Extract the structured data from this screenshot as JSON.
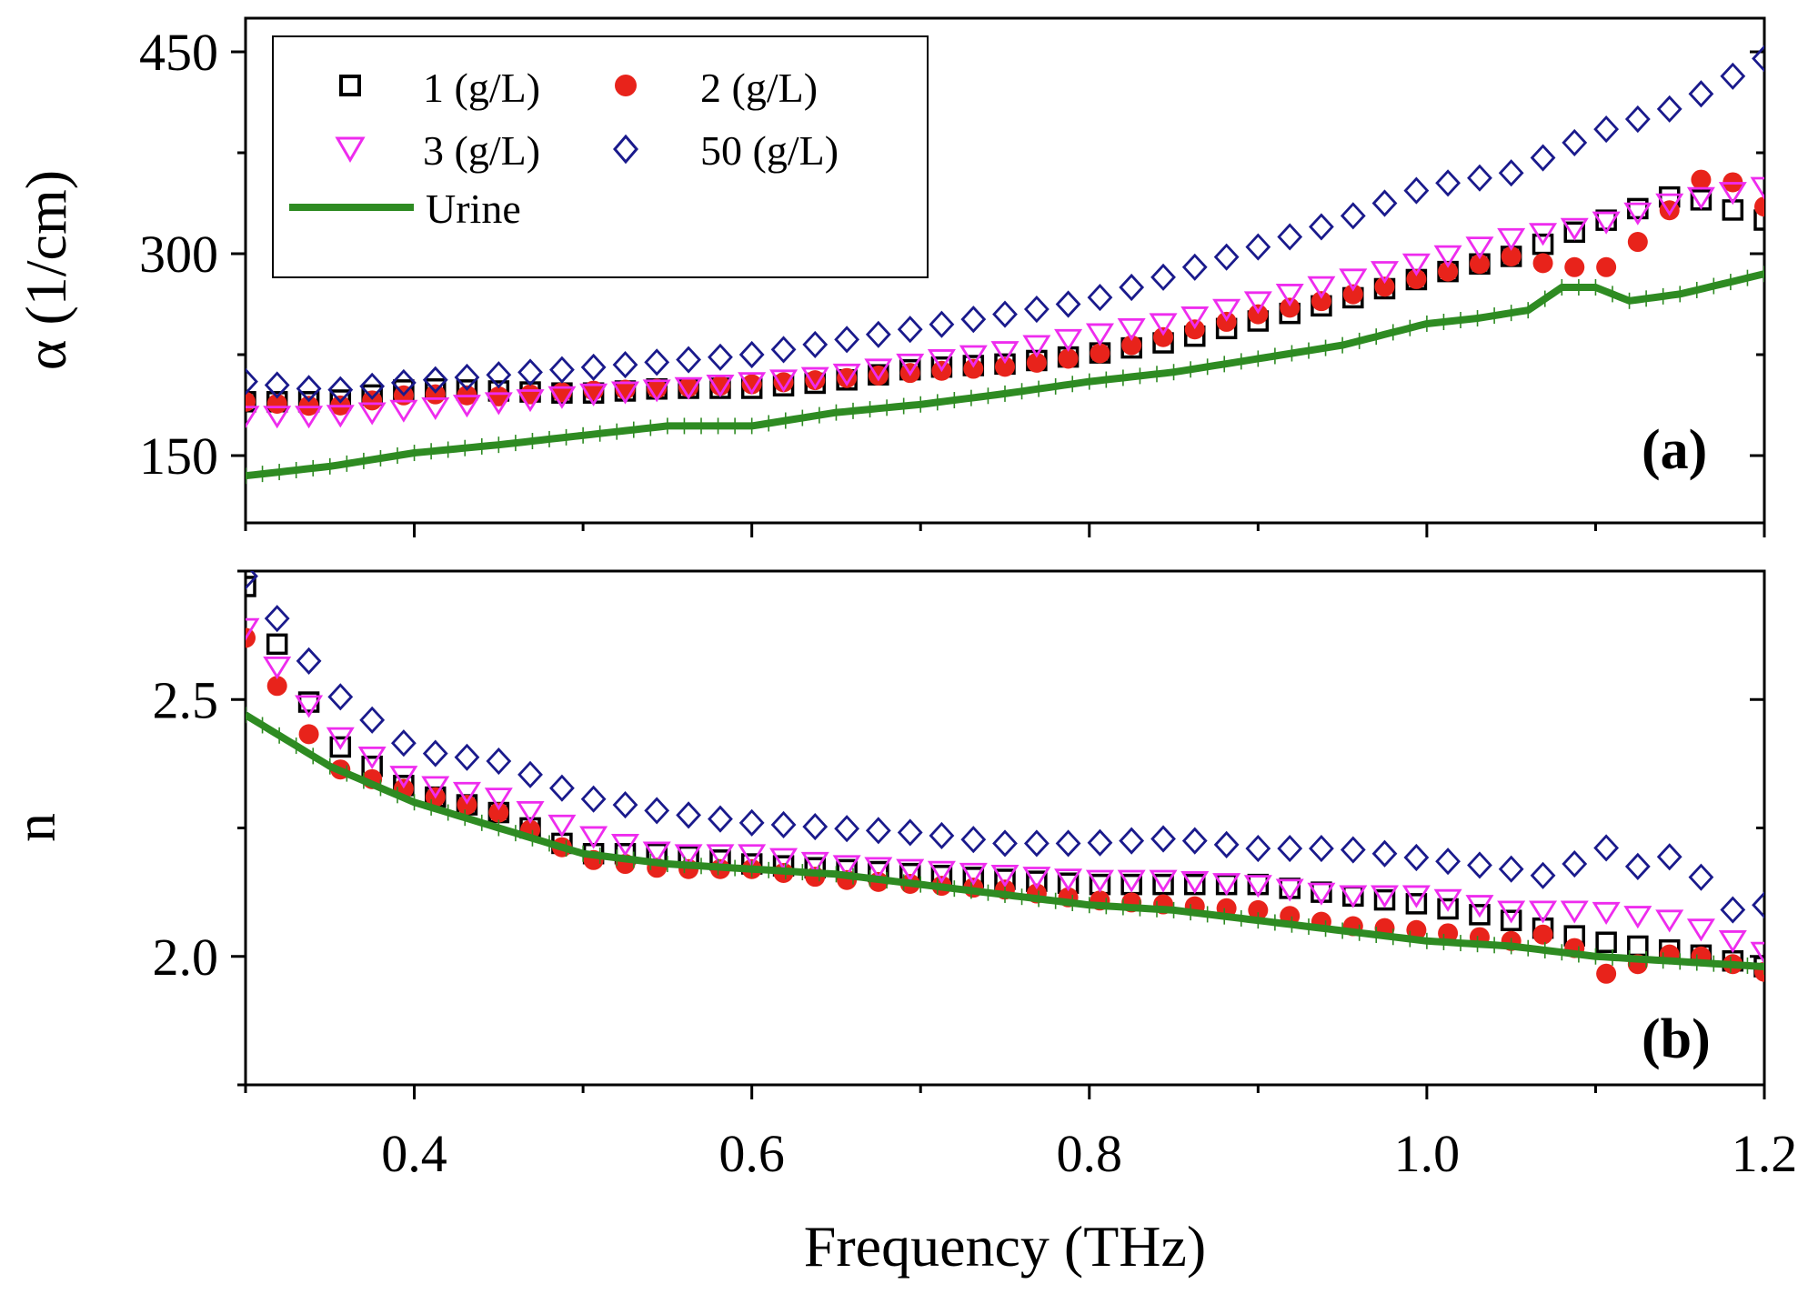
{
  "chart_data": {
    "type": "scatter",
    "xlabel": "Frequency (THz)",
    "xlim": [
      0.3,
      1.2
    ],
    "xticks": [
      0.4,
      0.6,
      0.8,
      1.0,
      1.2
    ],
    "xtick_labels": [
      "0.4",
      "0.6",
      "0.8",
      "1.0",
      "1.2"
    ],
    "colors": {
      "c1": "#000000",
      "c2": "#e8231b",
      "c3": "#ee2cee",
      "c50": "#1a1a8c",
      "urine": "#2e8b22"
    },
    "legend": [
      {
        "key": "c1",
        "label": "1 (g/L)",
        "marker": "square-open"
      },
      {
        "key": "c2",
        "label": "2 (g/L)",
        "marker": "circle-filled"
      },
      {
        "key": "c3",
        "label": "3 (g/L)",
        "marker": "triangle-down-open"
      },
      {
        "key": "c50",
        "label": "50 (g/L)",
        "marker": "diamond-open"
      },
      {
        "key": "urine",
        "label": "Urine",
        "marker": "line"
      }
    ],
    "panels": [
      {
        "id": "a",
        "label": "(a)",
        "ylabel": "α (1/cm)",
        "ylim": [
          100,
          475
        ],
        "yticks": [
          150,
          300,
          450
        ],
        "ytick_labels": [
          "150",
          "300",
          "450"
        ],
        "series": [
          {
            "key": "c1",
            "name": "1 (g/L)",
            "x": [
              0.3,
              0.35,
              0.4,
              0.45,
              0.5,
              0.55,
              0.6,
              0.65,
              0.7,
              0.75,
              0.8,
              0.85,
              0.9,
              0.95,
              1.0,
              1.05,
              1.1,
              1.15,
              1.2
            ],
            "y": [
              190,
              190,
              200,
              198,
              196,
              200,
              200,
              205,
              215,
              218,
              225,
              235,
              250,
              265,
              283,
              298,
              322,
              345,
              325
            ]
          },
          {
            "key": "c2",
            "name": "2 (g/L)",
            "x": [
              0.3,
              0.35,
              0.4,
              0.45,
              0.5,
              0.55,
              0.6,
              0.65,
              0.7,
              0.75,
              0.8,
              0.85,
              0.9,
              0.95,
              1.0,
              1.05,
              1.08,
              1.11,
              1.15,
              1.17,
              1.2
            ],
            "y": [
              190,
              186,
              196,
              194,
              198,
              200,
              203,
              207,
              212,
              216,
              224,
              240,
              255,
              268,
              283,
              298,
              290,
              290,
              340,
              364,
              335
            ]
          },
          {
            "key": "c3",
            "name": "3 (g/L)",
            "x": [
              0.3,
              0.35,
              0.4,
              0.45,
              0.5,
              0.55,
              0.6,
              0.65,
              0.7,
              0.75,
              0.8,
              0.85,
              0.9,
              0.95,
              1.0,
              1.05,
              1.1,
              1.15,
              1.2
            ],
            "y": [
              180,
              180,
              185,
              190,
              196,
              200,
              205,
              210,
              220,
              228,
              240,
              250,
              265,
              280,
              295,
              312,
              322,
              340,
              350
            ]
          },
          {
            "key": "c50",
            "name": "50 (g/L)",
            "x": [
              0.3,
              0.35,
              0.4,
              0.45,
              0.5,
              0.55,
              0.6,
              0.65,
              0.7,
              0.75,
              0.8,
              0.85,
              0.9,
              0.95,
              1.0,
              1.05,
              1.1,
              1.15,
              1.2
            ],
            "y": [
              205,
              198,
              205,
              210,
              215,
              220,
              225,
              235,
              245,
              255,
              265,
              285,
              305,
              325,
              350,
              360,
              390,
              410,
              445
            ]
          },
          {
            "key": "urine",
            "name": "Urine",
            "x": [
              0.3,
              0.35,
              0.4,
              0.45,
              0.5,
              0.55,
              0.6,
              0.65,
              0.7,
              0.75,
              0.8,
              0.85,
              0.9,
              0.95,
              1.0,
              1.03,
              1.06,
              1.08,
              1.1,
              1.12,
              1.15,
              1.2
            ],
            "y": [
              135,
              142,
              152,
              158,
              165,
              172,
              172,
              182,
              188,
              196,
              205,
              212,
              222,
              232,
              248,
              252,
              258,
              275,
              275,
              265,
              270,
              285
            ]
          }
        ]
      },
      {
        "id": "b",
        "label": "(b)",
        "ylabel": "n",
        "ylim": [
          1.75,
          2.75
        ],
        "yticks": [
          2.0,
          2.5
        ],
        "ytick_labels": [
          "2.0",
          "2.5"
        ],
        "series": [
          {
            "key": "c1",
            "name": "1 (g/L)",
            "x": [
              0.3,
              0.35,
              0.4,
              0.45,
              0.5,
              0.55,
              0.6,
              0.65,
              0.7,
              0.75,
              0.8,
              0.85,
              0.9,
              0.95,
              1.0,
              1.05,
              1.1,
              1.15,
              1.2
            ],
            "y": [
              2.72,
              2.42,
              2.32,
              2.28,
              2.2,
              2.2,
              2.18,
              2.17,
              2.16,
              2.15,
              2.14,
              2.14,
              2.14,
              2.12,
              2.1,
              2.07,
              2.03,
              2.01,
              1.98
            ]
          },
          {
            "key": "c2",
            "name": "2 (g/L)",
            "x": [
              0.3,
              0.35,
              0.4,
              0.45,
              0.5,
              0.55,
              0.6,
              0.65,
              0.7,
              0.75,
              0.8,
              0.85,
              0.9,
              0.95,
              1.0,
              1.05,
              1.08,
              1.1,
              1.15,
              1.2
            ],
            "y": [
              2.62,
              2.37,
              2.32,
              2.28,
              2.19,
              2.17,
              2.17,
              2.15,
              2.14,
              2.13,
              2.11,
              2.1,
              2.09,
              2.06,
              2.05,
              2.03,
              2.05,
              1.96,
              2.01,
              1.97
            ]
          },
          {
            "key": "c3",
            "name": "3 (g/L)",
            "x": [
              0.3,
              0.35,
              0.4,
              0.45,
              0.5,
              0.55,
              0.6,
              0.65,
              0.7,
              0.75,
              0.8,
              0.85,
              0.9,
              0.95,
              1.0,
              1.05,
              1.1,
              1.15,
              1.2
            ],
            "y": [
              2.64,
              2.44,
              2.34,
              2.31,
              2.24,
              2.2,
              2.2,
              2.18,
              2.17,
              2.16,
              2.15,
              2.15,
              2.14,
              2.12,
              2.12,
              2.09,
              2.09,
              2.07,
              2.01
            ]
          },
          {
            "key": "c50",
            "name": "50 (g/L)",
            "x": [
              0.3,
              0.35,
              0.4,
              0.45,
              0.5,
              0.55,
              0.6,
              0.65,
              0.7,
              0.75,
              0.8,
              0.85,
              0.9,
              0.95,
              1.0,
              1.05,
              1.08,
              1.1,
              1.12,
              1.15,
              1.18,
              1.2
            ],
            "y": [
              2.74,
              2.52,
              2.4,
              2.38,
              2.31,
              2.28,
              2.26,
              2.25,
              2.24,
              2.22,
              2.22,
              2.23,
              2.21,
              2.21,
              2.19,
              2.17,
              2.15,
              2.23,
              2.17,
              2.2,
              2.09,
              2.1
            ]
          },
          {
            "key": "urine",
            "name": "Urine",
            "x": [
              0.3,
              0.35,
              0.4,
              0.45,
              0.5,
              0.55,
              0.6,
              0.65,
              0.7,
              0.75,
              0.8,
              0.85,
              0.9,
              0.95,
              1.0,
              1.05,
              1.1,
              1.15,
              1.2
            ],
            "y": [
              2.47,
              2.37,
              2.3,
              2.25,
              2.2,
              2.18,
              2.17,
              2.16,
              2.14,
              2.12,
              2.1,
              2.09,
              2.07,
              2.05,
              2.03,
              2.02,
              2.0,
              1.99,
              1.98
            ]
          }
        ]
      }
    ]
  }
}
